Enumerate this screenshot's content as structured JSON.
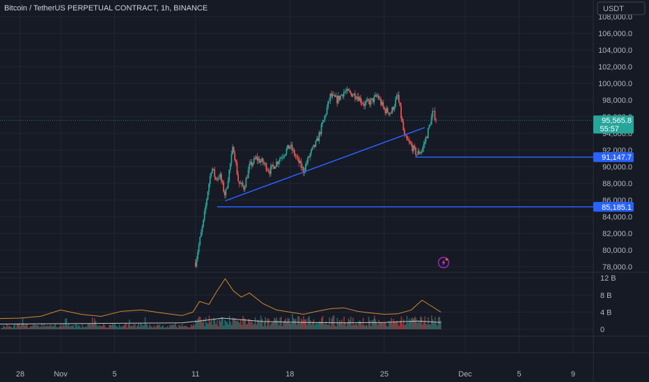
{
  "header": {
    "title": "Bitcoin / TetherUS PERPETUAL CONTRACT, 1h, BINANCE",
    "currency_button": "USDT"
  },
  "colors": {
    "background": "#161a25",
    "grid": "#232733",
    "up": "#26a69a",
    "down": "#ef5350",
    "drawing": "#2962ff",
    "last_price_tag": "#26a69a",
    "volume_ma_orange": "#d68a2e",
    "volume_ma_white": "#c8c8c8"
  },
  "price_tags": [
    {
      "label": "95,565.8",
      "sub": "55:57",
      "value": 95565.8,
      "color": "#26a69a"
    },
    {
      "label": "91,147.7",
      "value": 91147.7,
      "color": "#2962ff"
    },
    {
      "label": "85,185.1",
      "value": 85185.1,
      "color": "#2962ff"
    }
  ],
  "chart_data": {
    "type": "candlestick",
    "title": "Bitcoin / TetherUS PERPETUAL CONTRACT, 1h, BINANCE",
    "y_ticks": [
      "108,000.0",
      "106,000.0",
      "104,000.0",
      "102,000.0",
      "100,000.0",
      "98,000.0",
      "96,000.0",
      "94,000.0",
      "92,000.0",
      "90,000.0",
      "88,000.0",
      "86,000.0",
      "84,000.0",
      "82,000.0",
      "80,000.0",
      "78,000.0"
    ],
    "y_tick_values": [
      108000,
      106000,
      104000,
      102000,
      100000,
      98000,
      96000,
      94000,
      92000,
      90000,
      88000,
      86000,
      84000,
      82000,
      80000,
      78000
    ],
    "ylim": [
      77500,
      108500
    ],
    "x_ticks": [
      "28",
      "Nov",
      "5",
      "11",
      "18",
      "25",
      "Dec",
      "5",
      "9"
    ],
    "x_tick_days": [
      -3,
      0,
      4,
      10,
      17,
      24,
      30,
      34,
      38
    ],
    "xlim_days": [
      -4.5,
      39.5
    ],
    "price_path_days": [
      10,
      10.3,
      10.6,
      10.9,
      11.2,
      11.5,
      11.8,
      12.2,
      12.8,
      13.2,
      13.6,
      14.0,
      14.5,
      15.0,
      15.5,
      16.0,
      16.5,
      17.0,
      17.5,
      18.0,
      18.5,
      19.0,
      19.5,
      20.0,
      20.5,
      21.0,
      21.5,
      22.0,
      22.5,
      23.0,
      23.5,
      24.0,
      24.5,
      25.0,
      25.5,
      26.0,
      26.4,
      26.8,
      27.2,
      27.6,
      27.9
    ],
    "price_path_close": [
      78500,
      81000,
      83500,
      87000,
      90000,
      88500,
      89000,
      86500,
      92500,
      88000,
      87500,
      90000,
      91000,
      90500,
      89500,
      90500,
      91500,
      92500,
      91000,
      89500,
      91500,
      93000,
      95500,
      98500,
      98000,
      99000,
      98800,
      98500,
      97500,
      97800,
      98500,
      96800,
      96500,
      98500,
      93500,
      92500,
      91500,
      92000,
      94000,
      96500,
      95565.8
    ],
    "volume_axis_ticks": [
      "12 B",
      "8 B",
      "4 B",
      "0"
    ],
    "volume_axis_values": [
      12,
      8,
      4,
      0
    ],
    "volume_ylim_billions": [
      0,
      13
    ],
    "volume_ma_orange_days": [
      -4.5,
      -3,
      -1.5,
      0,
      1.5,
      3,
      4.5,
      6,
      7.5,
      9,
      9.8,
      10.3,
      11,
      11.6,
      12.2,
      12.8,
      13.4,
      14,
      15,
      16,
      17,
      18,
      19,
      20,
      21,
      22,
      23,
      24,
      25,
      26,
      26.8,
      27.6,
      28.2
    ],
    "volume_ma_orange_billions": [
      2.5,
      2.6,
      3.0,
      4.5,
      3.5,
      3.0,
      4.2,
      4.5,
      3.8,
      3.2,
      4.0,
      6.5,
      5.8,
      9.0,
      11.8,
      9.0,
      7.5,
      8.5,
      6.0,
      4.5,
      4.0,
      3.5,
      4.2,
      4.8,
      5.0,
      4.2,
      3.8,
      3.5,
      3.6,
      4.5,
      6.8,
      5.2,
      4.0
    ],
    "volume_ma_white_days": [
      -4.5,
      0,
      4.5,
      9,
      10.5,
      12,
      13.5,
      15,
      18,
      21,
      24,
      26.5,
      28.2
    ],
    "volume_ma_white_billions": [
      1.2,
      1.3,
      1.4,
      1.5,
      2.0,
      2.6,
      2.2,
      1.8,
      1.6,
      1.5,
      1.6,
      1.9,
      1.6
    ],
    "drawings": [
      {
        "type": "trendline",
        "from": {
          "day": 12.2,
          "price": 85900
        },
        "to": {
          "day": 27.0,
          "price": 94700
        }
      },
      {
        "type": "horizontal_ray",
        "from_day": 11.6,
        "price": 85185.1
      },
      {
        "type": "horizontal_ray",
        "from_day": 26.3,
        "price": 91147.7
      }
    ],
    "last_price": 95565.8,
    "countdown": "55:57"
  }
}
